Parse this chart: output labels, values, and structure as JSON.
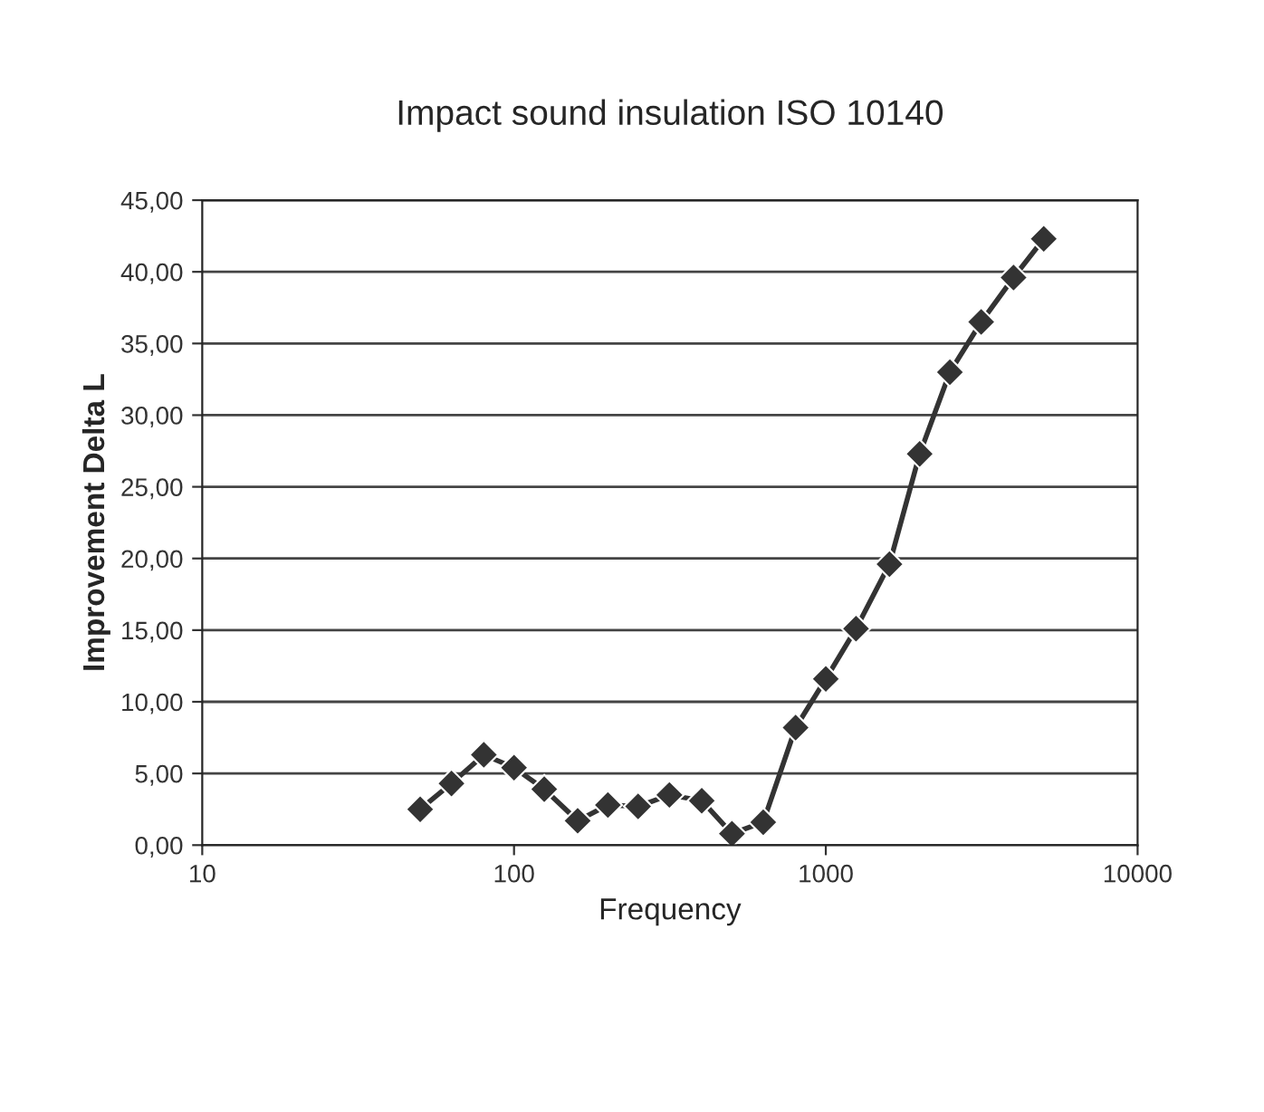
{
  "chart_data": {
    "type": "line",
    "title": "Impact sound insulation ISO 10140",
    "xlabel": "Frequency",
    "ylabel": "Improvement Delta L",
    "log": "x",
    "grid": "y",
    "marker": "diamond",
    "line_style": "solid",
    "legend": false,
    "xlim": [
      10,
      10000
    ],
    "xticks": [
      10,
      100,
      1000,
      10000
    ],
    "ylim": [
      0,
      45
    ],
    "yticks": [
      {
        "value": 0,
        "label": "0,00"
      },
      {
        "value": 5,
        "label": "5,00"
      },
      {
        "value": 10,
        "label": "10,00"
      },
      {
        "value": 15,
        "label": "15,00"
      },
      {
        "value": 20,
        "label": "20,00"
      },
      {
        "value": 25,
        "label": "25,00"
      },
      {
        "value": 30,
        "label": "30,00"
      },
      {
        "value": 35,
        "label": "35,00"
      },
      {
        "value": 40,
        "label": "40,00"
      },
      {
        "value": 45,
        "label": "45,00"
      }
    ],
    "x": [
      50,
      63,
      80,
      100,
      125,
      160,
      200,
      250,
      315,
      400,
      500,
      630,
      800,
      1000,
      1250,
      1600,
      2000,
      2500,
      3150,
      4000,
      5000
    ],
    "series": [
      {
        "color": "#333333",
        "values": [
          2.5,
          4.3,
          6.3,
          5.4,
          3.9,
          1.7,
          2.8,
          2.7,
          3.5,
          3.1,
          0.8,
          1.6,
          8.2,
          11.6,
          15.1,
          19.6,
          27.3,
          33.0,
          36.5,
          39.6,
          42.3
        ]
      }
    ]
  }
}
